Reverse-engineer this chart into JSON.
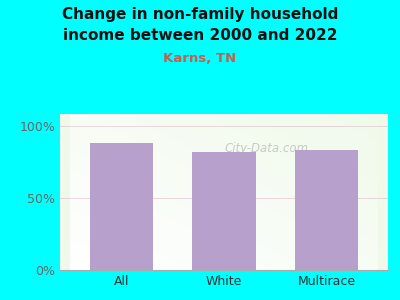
{
  "categories": [
    "All",
    "White",
    "Multirace"
  ],
  "values": [
    88,
    82,
    83
  ],
  "bar_color": "#b8a0cc",
  "title_line1": "Change in non-family household",
  "title_line2": "income between 2000 and 2022",
  "subtitle": "Karns, TN",
  "title_color": "#111111",
  "subtitle_color": "#c06050",
  "bg_outer": "#00ffff",
  "yticks": [
    0,
    50,
    100
  ],
  "ytick_labels": [
    "0%",
    "50%",
    "100%"
  ],
  "ylim": [
    0,
    108
  ],
  "watermark": "City-Data.com",
  "tick_color": "#666666",
  "xlabel_color": "#333333",
  "bar_width": 0.62,
  "grad_colors": [
    "#e8f5e0",
    "#ffffff"
  ]
}
